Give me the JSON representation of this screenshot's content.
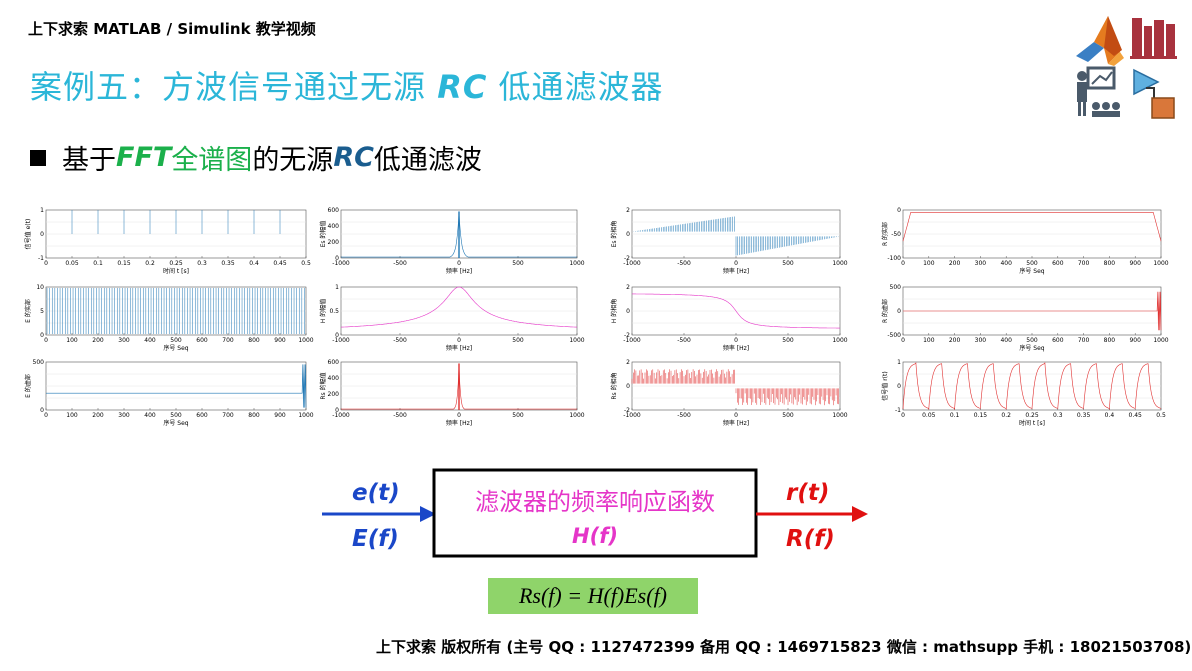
{
  "header": {
    "course_title": "上下求索 MATLAB / Simulink 教学视频"
  },
  "title": {
    "prefix": "案例五：方波信号通过无源 ",
    "rc": "RC",
    "suffix": " 低通滤波器"
  },
  "bullet": {
    "part1": "基于 ",
    "fft": "FFT",
    "part2": " 全谱图",
    "part3": "的无源 ",
    "rc": "RC",
    "part4": " 低通滤波"
  },
  "icons": [
    "matlab-logo-icon",
    "books-icon",
    "teacher-icon",
    "simulink-block-icon"
  ],
  "plots": {
    "row1": [
      {
        "ylabel": "信号值 e(t)",
        "xlabel": "时间 t [s]",
        "xticks": [
          "0",
          "0.05",
          "0.1",
          "0.15",
          "0.2",
          "0.25",
          "0.3",
          "0.35",
          "0.4",
          "0.45",
          "0.5"
        ],
        "yticks": [
          "1",
          "0",
          "-1"
        ]
      },
      {
        "ylabel": "Es 的幅值",
        "xlabel": "频率 [Hz]",
        "xticks": [
          "-1000",
          "-500",
          "0",
          "500",
          "1000"
        ],
        "yticks": [
          "600",
          "400",
          "200",
          "0"
        ]
      },
      {
        "ylabel": "Es 的相角",
        "xlabel": "频率 [Hz]",
        "xticks": [
          "-1000",
          "-500",
          "0",
          "500",
          "1000"
        ],
        "yticks": [
          "2",
          "0",
          "-2"
        ]
      },
      {
        "ylabel": "R 的实部",
        "xlabel": "序号 Seq",
        "xticks": [
          "0",
          "100",
          "200",
          "300",
          "400",
          "500",
          "600",
          "700",
          "800",
          "900",
          "1000"
        ],
        "yticks": [
          "0",
          "-50",
          "-100"
        ]
      }
    ],
    "row2": [
      {
        "ylabel": "E 的实部",
        "xlabel": "序号 Seq",
        "xticks": [
          "0",
          "100",
          "200",
          "300",
          "400",
          "500",
          "600",
          "700",
          "800",
          "900",
          "1000"
        ],
        "yticks": [
          "10",
          "5",
          "0"
        ]
      },
      {
        "ylabel": "H 的幅值",
        "xlabel": "频率 [Hz]",
        "xticks": [
          "-1000",
          "-500",
          "0",
          "500",
          "1000"
        ],
        "yticks": [
          "1",
          "0.5",
          "0"
        ]
      },
      {
        "ylabel": "H 的相角",
        "xlabel": "频率 [Hz]",
        "xticks": [
          "-1000",
          "-500",
          "0",
          "500",
          "1000"
        ],
        "yticks": [
          "2",
          "0",
          "-2"
        ]
      },
      {
        "ylabel": "R 的虚部",
        "xlabel": "序号 Seq",
        "xticks": [
          "0",
          "100",
          "200",
          "300",
          "400",
          "500",
          "600",
          "700",
          "800",
          "900",
          "1000"
        ],
        "yticks": [
          "500",
          "0",
          "-500"
        ]
      }
    ],
    "row3": [
      {
        "ylabel": "E 的虚部",
        "xlabel": "序号 Seq",
        "xticks": [
          "0",
          "100",
          "200",
          "300",
          "400",
          "500",
          "600",
          "700",
          "800",
          "900",
          "1000"
        ],
        "yticks": [
          "500",
          "0"
        ]
      },
      {
        "ylabel": "Rs 的幅值",
        "xlabel": "频率 [Hz]",
        "xticks": [
          "-1000",
          "-500",
          "0",
          "500",
          "1000"
        ],
        "yticks": [
          "600",
          "400",
          "200",
          "0"
        ]
      },
      {
        "ylabel": "Rs 的相角",
        "xlabel": "频率 [Hz]",
        "xticks": [
          "-1000",
          "-500",
          "0",
          "500",
          "1000"
        ],
        "yticks": [
          "2",
          "0",
          "-2"
        ]
      },
      {
        "ylabel": "信号值 r(t)",
        "xlabel": "时间 t [s]",
        "xticks": [
          "0",
          "0.05",
          "0.1",
          "0.15",
          "0.2",
          "0.25",
          "0.3",
          "0.35",
          "0.4",
          "0.45",
          "0.5"
        ],
        "yticks": [
          "1",
          "0",
          "-1"
        ]
      }
    ]
  },
  "diagram": {
    "input_time": "e(t)",
    "input_freq": "E(f)",
    "box_title": "滤波器的频率响应函数",
    "box_func": "H(f)",
    "output_time": "r(t)",
    "output_freq": "R(f)",
    "formula": "Rs(f) = H(f)Es(f)"
  },
  "footer": {
    "text": "上下求索  版权所有  (主号 QQ : 1127472399   备用 QQ : 1469715823   微信 : mathsupp   手机 : 18021503708)"
  },
  "colors": {
    "title": "#2bb6d8",
    "green": "#1bb04b",
    "blue_signal": "#1a47c8",
    "red_signal": "#e01010",
    "magenta": "#e535c8",
    "plot_blue": "#1f77b4",
    "plot_red": "#e03030",
    "plot_magenta": "#e535c8",
    "formula_bg": "#8fd46a"
  }
}
